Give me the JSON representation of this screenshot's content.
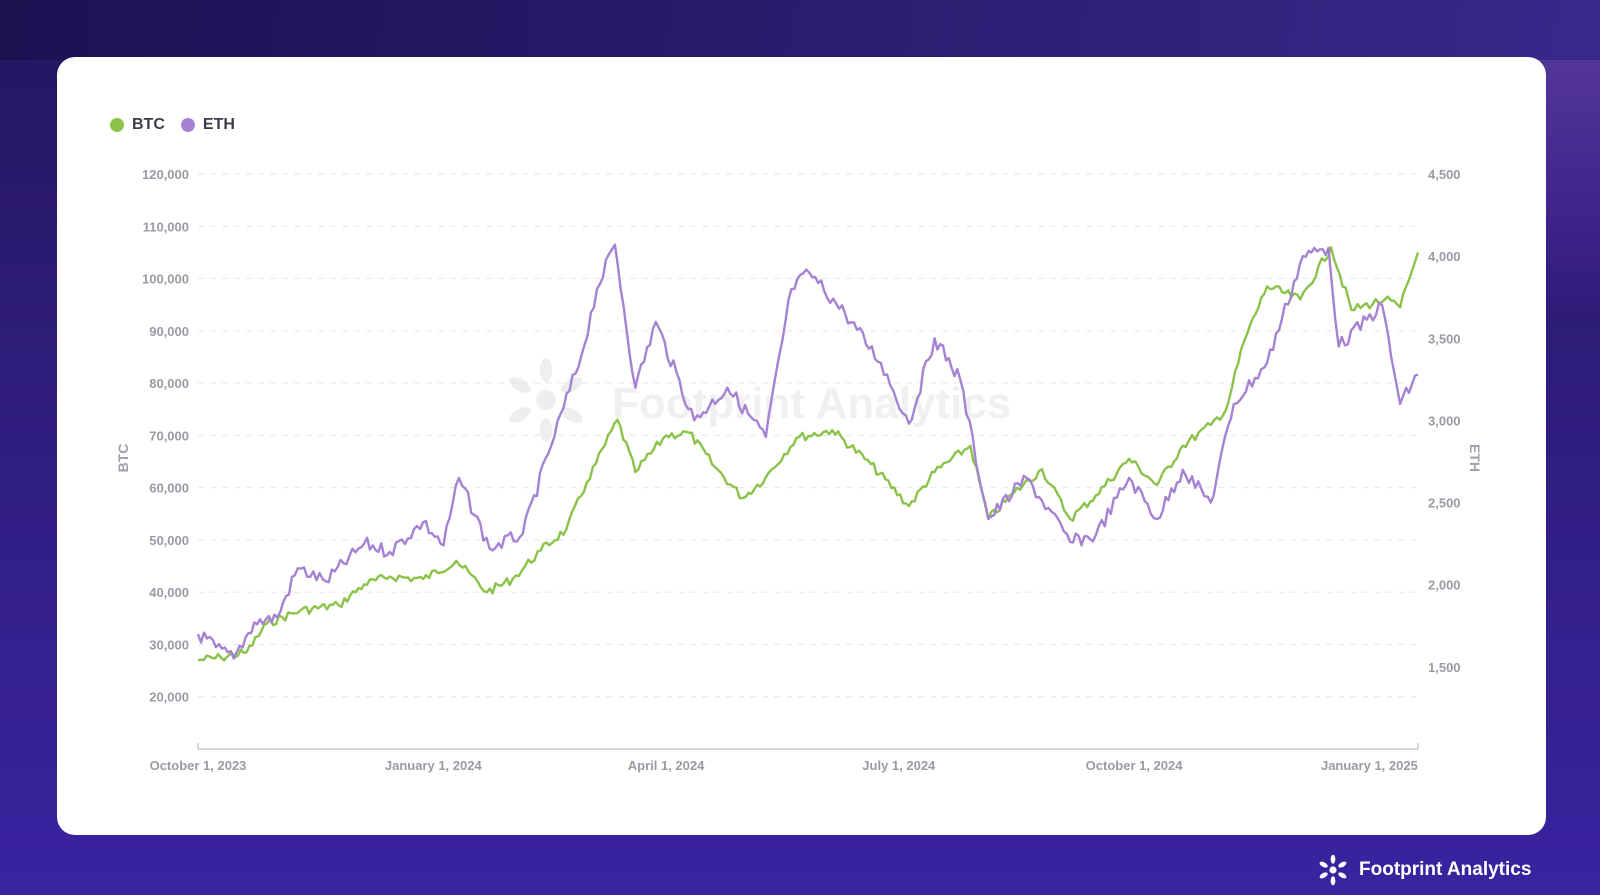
{
  "brand": {
    "name": "Footprint Analytics",
    "watermark": "Footprint Analytics"
  },
  "colors": {
    "btc": "#8bc34a",
    "eth": "#a682d2",
    "grid": "#e6e6ec",
    "axis": "#9a9aa6"
  },
  "legend": [
    {
      "label": "BTC",
      "color": "#8bc34a"
    },
    {
      "label": "ETH",
      "color": "#a682d2"
    }
  ],
  "chart_data": {
    "type": "line",
    "x_axis": {
      "ticks": [
        "October 1, 2023",
        "January 1, 2024",
        "April 1, 2024",
        "July 1, 2024",
        "October 1, 2024",
        "January 1, 2025"
      ],
      "range": [
        "2023-10-01",
        "2025-01-20"
      ]
    },
    "y_left": {
      "label": "BTC",
      "range": [
        10000,
        120000
      ],
      "ticks": [
        "120,000",
        "110,000",
        "100,000",
        "90,000",
        "80,000",
        "70,000",
        "60,000",
        "50,000",
        "40,000",
        "30,000",
        "20,000"
      ],
      "tick_values": [
        120000,
        110000,
        100000,
        90000,
        80000,
        70000,
        60000,
        50000,
        40000,
        30000,
        20000
      ]
    },
    "y_right": {
      "label": "ETH",
      "range": [
        1000,
        4500
      ],
      "ticks": [
        "4,500",
        "4,000",
        "3,500",
        "3,000",
        "2,500",
        "2,000",
        "1,500"
      ],
      "tick_values": [
        4500,
        4000,
        3500,
        3000,
        2500,
        2000,
        1500
      ]
    },
    "grid": true,
    "legend_position": "top-left",
    "series": [
      {
        "name": "BTC",
        "axis": "left",
        "color": "#8bc34a",
        "points": [
          [
            "2023-10-01",
            27000
          ],
          [
            "2023-10-10",
            27500
          ],
          [
            "2023-10-20",
            28500
          ],
          [
            "2023-10-28",
            34000
          ],
          [
            "2023-11-10",
            36500
          ],
          [
            "2023-11-25",
            37500
          ],
          [
            "2023-12-05",
            41500
          ],
          [
            "2023-12-15",
            43000
          ],
          [
            "2023-12-28",
            42500
          ],
          [
            "2024-01-10",
            46000
          ],
          [
            "2024-01-22",
            40000
          ],
          [
            "2024-02-01",
            42500
          ],
          [
            "2024-02-12",
            48000
          ],
          [
            "2024-02-22",
            52000
          ],
          [
            "2024-03-01",
            61000
          ],
          [
            "2024-03-13",
            73000
          ],
          [
            "2024-03-20",
            63000
          ],
          [
            "2024-04-01",
            70000
          ],
          [
            "2024-04-10",
            70500
          ],
          [
            "2024-04-20",
            64000
          ],
          [
            "2024-05-01",
            58000
          ],
          [
            "2024-05-10",
            62000
          ],
          [
            "2024-05-22",
            69500
          ],
          [
            "2024-06-05",
            71000
          ],
          [
            "2024-06-20",
            64500
          ],
          [
            "2024-07-05",
            56500
          ],
          [
            "2024-07-15",
            63000
          ],
          [
            "2024-07-29",
            68000
          ],
          [
            "2024-08-05",
            54000
          ],
          [
            "2024-08-15",
            59000
          ],
          [
            "2024-08-26",
            63500
          ],
          [
            "2024-09-06",
            54000
          ],
          [
            "2024-09-16",
            58500
          ],
          [
            "2024-09-29",
            65500
          ],
          [
            "2024-10-10",
            60500
          ],
          [
            "2024-10-20",
            68000
          ],
          [
            "2024-10-31",
            72000
          ],
          [
            "2024-11-06",
            75000
          ],
          [
            "2024-11-13",
            88000
          ],
          [
            "2024-11-22",
            98500
          ],
          [
            "2024-12-05",
            96000
          ],
          [
            "2024-12-17",
            106000
          ],
          [
            "2024-12-25",
            94000
          ],
          [
            "2025-01-07",
            96000
          ],
          [
            "2025-01-13",
            94500
          ],
          [
            "2025-01-20",
            105000
          ]
        ]
      },
      {
        "name": "ETH",
        "axis": "right",
        "color": "#a682d2",
        "points": [
          [
            "2023-10-01",
            1700
          ],
          [
            "2023-10-08",
            1620
          ],
          [
            "2023-10-15",
            1550
          ],
          [
            "2023-10-23",
            1770
          ],
          [
            "2023-11-01",
            1800
          ],
          [
            "2023-11-09",
            2100
          ],
          [
            "2023-11-20",
            2020
          ],
          [
            "2023-12-05",
            2250
          ],
          [
            "2023-12-15",
            2200
          ],
          [
            "2023-12-28",
            2380
          ],
          [
            "2024-01-05",
            2240
          ],
          [
            "2024-01-11",
            2650
          ],
          [
            "2024-01-23",
            2220
          ],
          [
            "2024-02-05",
            2310
          ],
          [
            "2024-02-15",
            2800
          ],
          [
            "2024-02-28",
            3400
          ],
          [
            "2024-03-05",
            3800
          ],
          [
            "2024-03-12",
            4070
          ],
          [
            "2024-03-20",
            3200
          ],
          [
            "2024-03-28",
            3600
          ],
          [
            "2024-04-12",
            3000
          ],
          [
            "2024-04-25",
            3200
          ],
          [
            "2024-05-10",
            2900
          ],
          [
            "2024-05-20",
            3800
          ],
          [
            "2024-05-27",
            3900
          ],
          [
            "2024-06-10",
            3650
          ],
          [
            "2024-06-24",
            3350
          ],
          [
            "2024-07-05",
            2980
          ],
          [
            "2024-07-15",
            3500
          ],
          [
            "2024-07-25",
            3250
          ],
          [
            "2024-08-05",
            2400
          ],
          [
            "2024-08-20",
            2650
          ],
          [
            "2024-09-06",
            2260
          ],
          [
            "2024-09-16",
            2300
          ],
          [
            "2024-09-29",
            2650
          ],
          [
            "2024-10-10",
            2400
          ],
          [
            "2024-10-20",
            2700
          ],
          [
            "2024-10-31",
            2500
          ],
          [
            "2024-11-09",
            3100
          ],
          [
            "2024-11-22",
            3350
          ],
          [
            "2024-12-06",
            4000
          ],
          [
            "2024-12-16",
            4050
          ],
          [
            "2024-12-20",
            3450
          ],
          [
            "2025-01-06",
            3700
          ],
          [
            "2025-01-13",
            3100
          ],
          [
            "2025-01-20",
            3280
          ]
        ]
      }
    ]
  }
}
